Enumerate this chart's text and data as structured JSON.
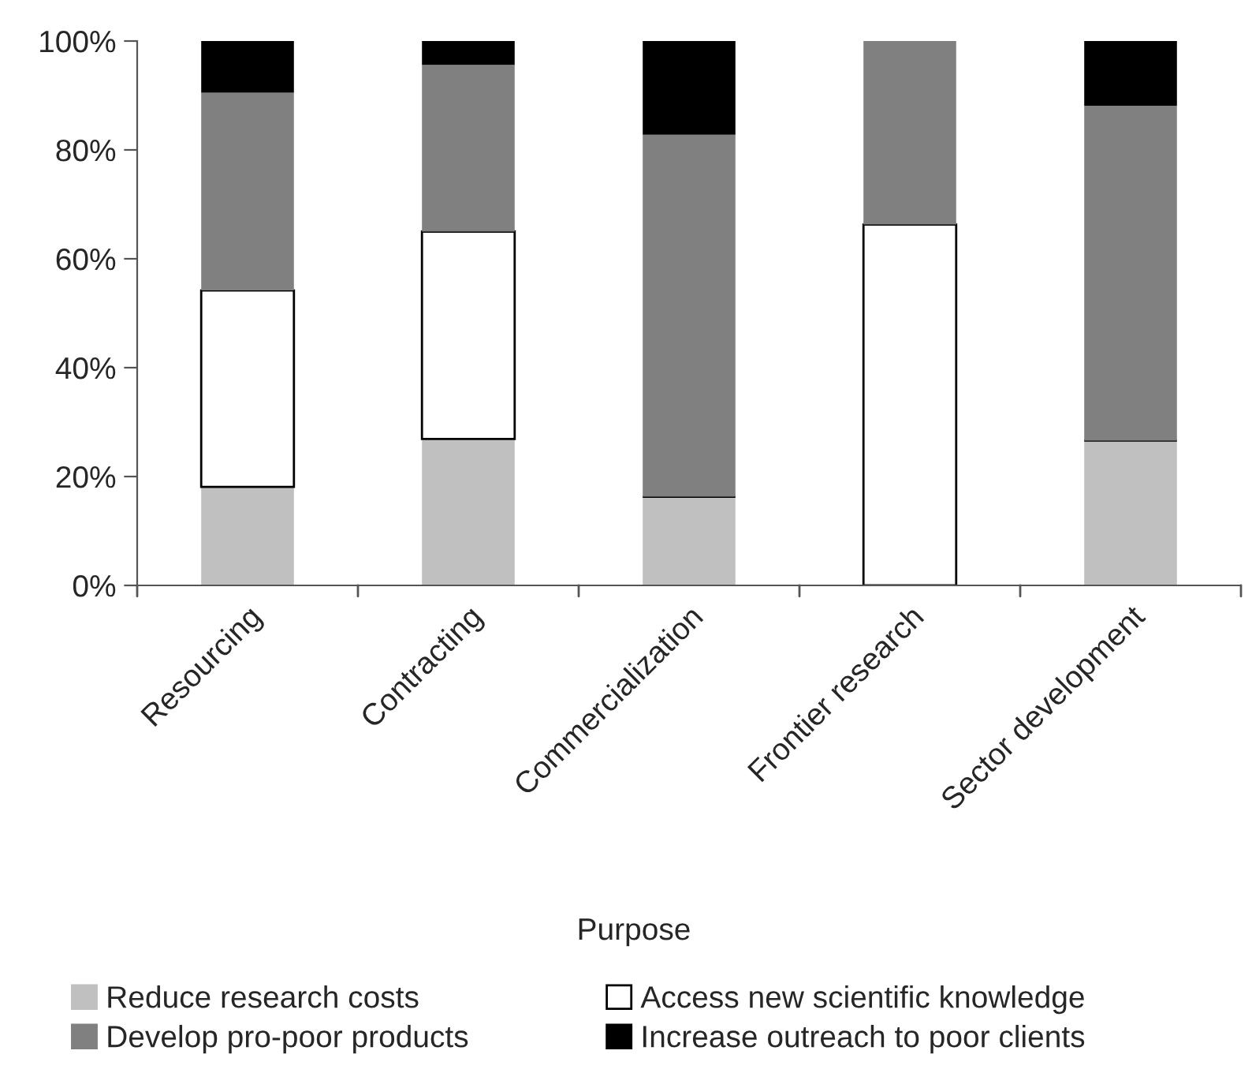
{
  "chart_data": {
    "type": "bar",
    "stacked": true,
    "xlabel": "Purpose",
    "categories": [
      "Resourcing",
      "Contracting",
      "Commercialization",
      "Frontier research",
      "Sector development"
    ],
    "series": [
      {
        "name": "Reduce research costs",
        "color": "#c0c0c0",
        "values": [
          18.1,
          26.9,
          16.3,
          0,
          26.6
        ]
      },
      {
        "name": "Access new scientific knowledge",
        "color": "#ffffff",
        "values": [
          36.1,
          38.1,
          0,
          66.3,
          0
        ]
      },
      {
        "name": "Develop pro-poor products",
        "color": "#808080",
        "values": [
          36.3,
          30.6,
          66.5,
          33.7,
          61.5
        ]
      },
      {
        "name": "Increase outreach to poor clients",
        "color": "#000000",
        "values": [
          9.5,
          4.4,
          17.2,
          0,
          11.9
        ]
      }
    ],
    "ylim": [
      0,
      100
    ],
    "yticks": [
      {
        "value": 0,
        "label": "0%"
      },
      {
        "value": 20,
        "label": "20%"
      },
      {
        "value": 40,
        "label": "40%"
      },
      {
        "value": 60,
        "label": "60%"
      },
      {
        "value": 80,
        "label": "80%"
      },
      {
        "value": 100,
        "label": "100%"
      }
    ],
    "grid": false,
    "legend": "bottom"
  }
}
